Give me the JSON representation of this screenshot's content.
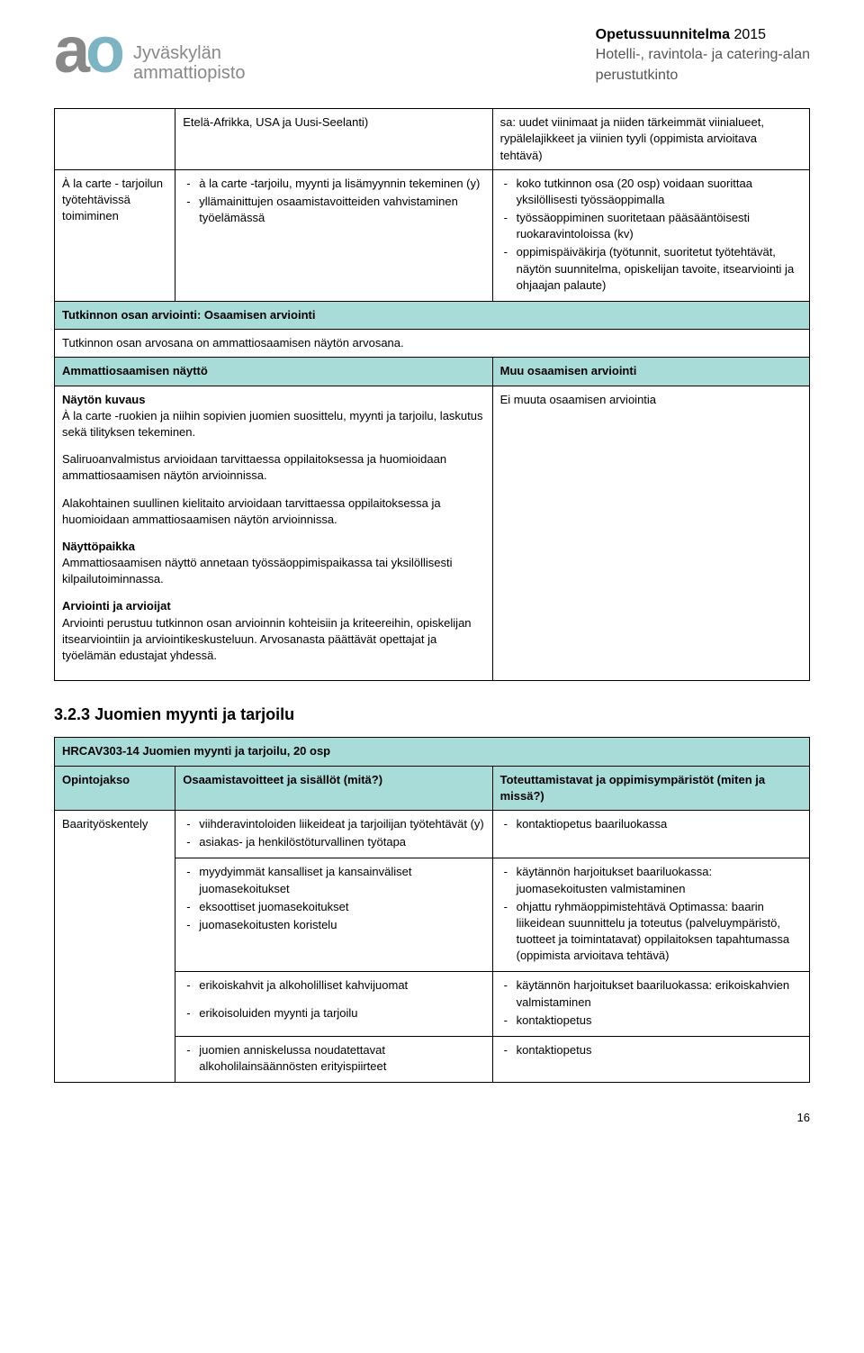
{
  "header": {
    "logo_org1": "Jyväskylän",
    "logo_org2": "ammattiopisto",
    "title_bold": "Opetussuunnitelma",
    "title_year": " 2015",
    "subtitle1": "Hotelli-, ravintola- ja catering-alan",
    "subtitle2": "perustutkinto"
  },
  "t1": {
    "r1_c1": "",
    "r1_c2": "Etelä-Afrikka, USA ja Uusi-Seelanti)",
    "r1_c3": "sa: uudet viinimaat ja niiden tärkeimmät viinialueet, rypälelajikkeet ja viinien tyyli (oppimista arvioitava tehtävä)",
    "r2_c1": "À la carte - tarjoilun työtehtävissä toimiminen",
    "r2_c2_items": [
      "à la carte -tarjoilu, myynti ja lisämyynnin tekeminen (y)",
      "yllämainittujen osaamistavoitteiden vahvistaminen työelämässä"
    ],
    "r2_c3_items": [
      "koko tutkinnon osa (20 osp) voidaan suorittaa yksilöllisesti työssäoppimalla",
      "työssäoppiminen suoritetaan pääsääntöisesti ruokaravintoloissa (kv)",
      "oppimispäiväkirja (työtunnit, suoritetut työtehtävät, näytön suunnitelma, opiskelijan tavoite, itsearviointi ja ohjaajan palaute)"
    ],
    "r3": "Tutkinnon osan arviointi: Osaamisen arviointi",
    "r4": "Tutkinnon osan arvosana on ammattiosaamisen näytön arvosana.",
    "r5_left": "Ammattiosaamisen näyttö",
    "r5_right": "Muu osaamisen arviointi",
    "r6_left": {
      "h1": "Näytön kuvaus",
      "p1": "À la carte -ruokien ja niihin sopivien juomien suosittelu, myynti ja tarjoilu, laskutus sekä tilityksen tekeminen.",
      "p2": "Saliruoanvalmistus arvioidaan tarvittaessa oppilaitoksessa ja huomioidaan ammattiosaamisen näytön arvioinnissa.",
      "p3": "Alakohtainen suullinen kielitaito arvioidaan tarvittaessa oppilaitoksessa ja huomioidaan ammattiosaamisen näytön arvioinnissa.",
      "h2": "Näyttöpaikka",
      "p4": "Ammattiosaamisen näyttö annetaan työssäoppimispaikassa tai yksilöllisesti kilpailutoiminnassa.",
      "h3": "Arviointi ja arvioijat",
      "p5": "Arviointi perustuu tutkinnon osan arvioinnin kohteisiin ja kriteereihin, opiskelijan itsearviointiin ja arviointikeskusteluun. Arvosanasta päättävät opettajat ja työelämän edustajat yhdessä."
    },
    "r6_right": "Ei muuta osaamisen arviointia"
  },
  "section_num": "3.2.3",
  "section_title": "Juomien myynti ja tarjoilu",
  "t2": {
    "r1": "HRCAV303-14 Juomien myynti ja tarjoilu, 20 osp",
    "r2_c1": "Opintojakso",
    "r2_c2": "Osaamistavoitteet ja sisällöt (mitä?)",
    "r2_c3": "Toteuttamistavat ja oppimisympäristöt (miten ja missä?)",
    "r3_c1": "Baarityöskentely",
    "r3_c2_items": [
      "viihderavintoloiden liikeideat ja tarjoilijan työtehtävät (y)",
      "asiakas- ja henkilöstöturvallinen työtapa"
    ],
    "r3_c3_items": [
      "kontaktiopetus baariluokassa"
    ],
    "r4_c2_items": [
      "myydyimmät kansalliset ja kansainväliset juomasekoitukset",
      "eksoottiset juomasekoitukset",
      "juomasekoitusten koristelu"
    ],
    "r4_c3_items": [
      "käytännön harjoitukset baariluokassa: juomasekoitusten valmistaminen",
      "ohjattu ryhmäoppimistehtävä Optimassa: baarin liikeidean suunnittelu ja toteutus (palveluympäristö, tuotteet ja toimintatavat) oppilaitoksen tapahtumassa (oppimista arvioitava tehtävä)"
    ],
    "r5_c2_items": [
      "erikoiskahvit ja alkoholilliset kahvijuomat",
      "erikoisoluiden myynti ja tarjoilu"
    ],
    "r5_c3_items": [
      "käytännön harjoitukset baariluokassa: erikoiskahvien valmistaminen",
      "kontaktiopetus"
    ],
    "r6_c2_items": [
      "juomien anniskelussa noudatettavat alkoholilainsäännösten erityispiirteet"
    ],
    "r6_c3_items": [
      "kontaktiopetus"
    ]
  },
  "page": "16"
}
